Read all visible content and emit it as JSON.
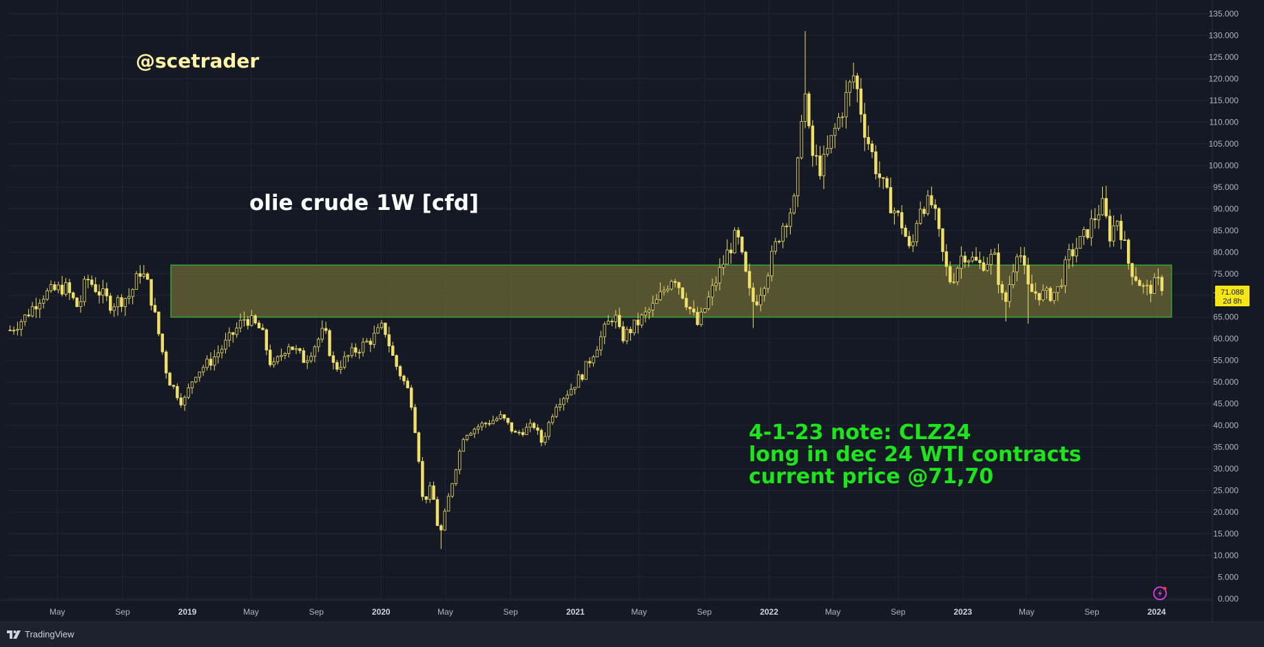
{
  "branding": {
    "name": "TradingView",
    "logo_icon": "tradingview-logo-icon"
  },
  "annotations": {
    "handle": "@scetrader",
    "title": "olie crude 1W [cfd]",
    "note_lines": [
      "4-1-23 note: CLZ24",
      "long in dec 24 WTI contracts",
      "current price @71,70"
    ]
  },
  "price_label": {
    "value": "71.088",
    "countdown": "2d 8h"
  },
  "colors": {
    "background": "#151924",
    "candle": "#f0e06a",
    "zone_fill": "#6b6734",
    "zone_border": "#3aa63a",
    "grid": "#232734",
    "price_label_bg": "#f5e615",
    "note": "#1de41d"
  },
  "chart_data": {
    "type": "candlestick",
    "timeframe": "1W",
    "symbol_note": "olie crude 1W [cfd]",
    "ylim": [
      0,
      135
    ],
    "y_ticks": [
      "0.000",
      "5.000",
      "10.000",
      "15.000",
      "20.000",
      "25.000",
      "30.000",
      "35.000",
      "40.000",
      "45.000",
      "50.000",
      "55.000",
      "60.000",
      "65.000",
      "70.000",
      "75.000",
      "80.000",
      "85.000",
      "90.000",
      "95.000",
      "100.000",
      "105.000",
      "110.000",
      "115.000",
      "120.000",
      "125.000",
      "130.000",
      "135.000"
    ],
    "x_ticks": [
      {
        "label": "May",
        "date": "2018-05-01",
        "year": false
      },
      {
        "label": "Sep",
        "date": "2018-09-01",
        "year": false
      },
      {
        "label": "2019",
        "date": "2019-01-01",
        "year": true
      },
      {
        "label": "May",
        "date": "2019-05-01",
        "year": false
      },
      {
        "label": "Sep",
        "date": "2019-09-01",
        "year": false
      },
      {
        "label": "2020",
        "date": "2020-01-01",
        "year": true
      },
      {
        "label": "May",
        "date": "2020-05-01",
        "year": false
      },
      {
        "label": "Sep",
        "date": "2020-09-01",
        "year": false
      },
      {
        "label": "2021",
        "date": "2021-01-01",
        "year": true
      },
      {
        "label": "May",
        "date": "2021-05-01",
        "year": false
      },
      {
        "label": "Sep",
        "date": "2021-09-01",
        "year": false
      },
      {
        "label": "2022",
        "date": "2022-01-01",
        "year": true
      },
      {
        "label": "May",
        "date": "2022-05-01",
        "year": false
      },
      {
        "label": "Sep",
        "date": "2022-09-01",
        "year": false
      },
      {
        "label": "2023",
        "date": "2023-01-01",
        "year": true
      },
      {
        "label": "May",
        "date": "2023-05-01",
        "year": false
      },
      {
        "label": "Sep",
        "date": "2023-09-01",
        "year": false
      },
      {
        "label": "2024",
        "date": "2024-01-01",
        "year": true
      }
    ],
    "x_range": [
      "2018-01-26",
      "2024-04-15"
    ],
    "zone": {
      "from_date": "2018-12-01",
      "to_date": "2024-01-29",
      "low": 65,
      "high": 77
    },
    "last_price": 71.088,
    "close_path": [
      [
        "2018-02-01",
        62
      ],
      [
        "2018-03-01",
        65
      ],
      [
        "2018-04-01",
        70
      ],
      [
        "2018-05-15",
        72
      ],
      [
        "2018-06-10",
        67
      ],
      [
        "2018-06-25",
        74
      ],
      [
        "2018-08-10",
        68
      ],
      [
        "2018-09-15",
        70
      ],
      [
        "2018-10-05",
        76
      ],
      [
        "2018-10-20",
        72
      ],
      [
        "2018-11-10",
        60
      ],
      [
        "2018-11-25",
        51
      ],
      [
        "2018-12-24",
        45
      ],
      [
        "2019-01-15",
        52
      ],
      [
        "2019-02-15",
        55
      ],
      [
        "2019-03-15",
        59
      ],
      [
        "2019-04-20",
        65
      ],
      [
        "2019-05-20",
        62
      ],
      [
        "2019-06-10",
        53
      ],
      [
        "2019-07-10",
        59
      ],
      [
        "2019-08-10",
        55
      ],
      [
        "2019-09-16",
        62
      ],
      [
        "2019-10-05",
        53
      ],
      [
        "2019-11-10",
        57
      ],
      [
        "2019-12-15",
        60
      ],
      [
        "2020-01-06",
        63
      ],
      [
        "2020-01-25",
        55
      ],
      [
        "2020-02-25",
        47
      ],
      [
        "2020-03-10",
        35
      ],
      [
        "2020-03-20",
        22
      ],
      [
        "2020-04-05",
        26
      ],
      [
        "2020-04-20",
        14
      ],
      [
        "2020-05-10",
        25
      ],
      [
        "2020-06-05",
        38
      ],
      [
        "2020-07-05",
        40
      ],
      [
        "2020-08-15",
        42
      ],
      [
        "2020-09-10",
        38
      ],
      [
        "2020-10-15",
        40
      ],
      [
        "2020-10-30",
        36
      ],
      [
        "2020-11-25",
        45
      ],
      [
        "2020-12-20",
        48
      ],
      [
        "2021-01-15",
        52
      ],
      [
        "2021-02-25",
        62
      ],
      [
        "2021-03-15",
        66
      ],
      [
        "2021-03-28",
        60
      ],
      [
        "2021-05-01",
        64
      ],
      [
        "2021-06-01",
        68
      ],
      [
        "2021-07-05",
        75
      ],
      [
        "2021-07-20",
        71
      ],
      [
        "2021-08-20",
        63
      ],
      [
        "2021-09-15",
        71
      ],
      [
        "2021-10-15",
        80
      ],
      [
        "2021-11-01",
        84
      ],
      [
        "2021-11-26",
        70
      ],
      [
        "2021-12-05",
        68
      ],
      [
        "2021-12-25",
        74
      ],
      [
        "2022-01-25",
        86
      ],
      [
        "2022-02-20",
        92
      ],
      [
        "2022-03-07",
        120
      ],
      [
        "2022-03-20",
        103
      ],
      [
        "2022-04-10",
        99
      ],
      [
        "2022-05-10",
        110
      ],
      [
        "2022-06-10",
        121
      ],
      [
        "2022-07-01",
        108
      ],
      [
        "2022-07-20",
        100
      ],
      [
        "2022-08-10",
        93
      ],
      [
        "2022-09-10",
        86
      ],
      [
        "2022-09-25",
        79
      ],
      [
        "2022-10-10",
        91
      ],
      [
        "2022-11-05",
        91
      ],
      [
        "2022-11-28",
        77
      ],
      [
        "2022-12-10",
        73
      ],
      [
        "2023-01-01",
        80
      ],
      [
        "2023-02-01",
        77
      ],
      [
        "2023-03-01",
        79
      ],
      [
        "2023-03-20",
        67
      ],
      [
        "2023-04-15",
        82
      ],
      [
        "2023-05-05",
        71
      ],
      [
        "2023-06-10",
        70
      ],
      [
        "2023-06-28",
        71
      ],
      [
        "2023-07-20",
        79
      ],
      [
        "2023-08-15",
        83
      ],
      [
        "2023-09-20",
        91
      ],
      [
        "2023-10-05",
        84
      ],
      [
        "2023-10-20",
        88
      ],
      [
        "2023-11-10",
        77
      ],
      [
        "2023-12-10",
        71
      ],
      [
        "2024-01-05",
        73
      ],
      [
        "2024-01-12",
        71.088
      ]
    ],
    "wick_spikes": [
      {
        "date": "2022-03-07",
        "high": 131
      },
      {
        "date": "2020-04-20",
        "low": 11.5
      },
      {
        "date": "2018-10-01",
        "high": 77
      },
      {
        "date": "2023-03-20",
        "low": 64
      },
      {
        "date": "2023-05-01",
        "low": 63.5
      },
      {
        "date": "2021-12-01",
        "low": 62.5
      },
      {
        "date": "2023-09-25",
        "high": 95.3
      }
    ]
  }
}
